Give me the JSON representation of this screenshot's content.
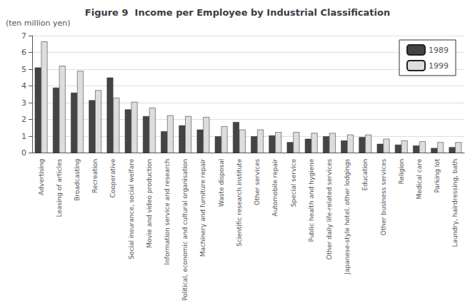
{
  "chart_data": {
    "type": "bar",
    "title": "Figure 9  Income per Employee by Industrial Classification",
    "ylabel": "(ten million yen)",
    "categories": [
      "Advertising",
      "Leasing of articles",
      "Broadcasting",
      "Recreation",
      "Cooperative",
      "Social insurance, social welfare",
      "Movie and video production",
      "Information service and research",
      "Political, economic and cultural organisation",
      "Machinery and furniture repair",
      "Waste disposal",
      "Scientific research institute",
      "Other services",
      "Automobile repair",
      "Special service",
      "Public health and hygiene",
      "Other daily life-related services",
      "Japanese-style hotel, other lodgings",
      "Education",
      "Other business services",
      "Religion",
      "Medical care",
      "Parking lot",
      "Laundry, hairdressing, bath"
    ],
    "series": [
      {
        "name": "1989",
        "color": "#444444",
        "values": [
          5.1,
          3.9,
          3.6,
          3.15,
          4.5,
          2.6,
          2.2,
          1.3,
          1.65,
          1.4,
          1.0,
          1.85,
          1.0,
          1.05,
          0.65,
          0.85,
          1.0,
          0.75,
          0.95,
          0.55,
          0.5,
          0.45,
          0.3,
          0.35
        ]
      },
      {
        "name": "1999",
        "color": "#dddddd",
        "values": [
          6.65,
          5.2,
          4.9,
          3.75,
          3.3,
          3.05,
          2.7,
          2.25,
          2.2,
          2.15,
          1.6,
          1.4,
          1.4,
          1.25,
          1.25,
          1.2,
          1.2,
          1.1,
          1.1,
          0.85,
          0.75,
          0.7,
          0.65,
          0.65
        ]
      }
    ],
    "ylim": [
      0,
      7
    ],
    "yticks": [
      0,
      1,
      2,
      3,
      4,
      5,
      6,
      7
    ],
    "grid": true,
    "legend": "upper right"
  }
}
